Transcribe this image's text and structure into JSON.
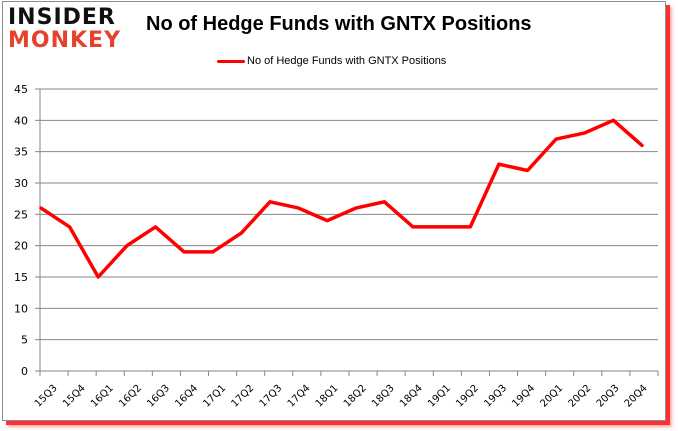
{
  "logo": {
    "line1": "INSIDER",
    "line2": "MONKEY"
  },
  "chart_data": {
    "type": "line",
    "title": "No of Hedge Funds with GNTX Positions",
    "xlabel": "",
    "ylabel": "",
    "categories": [
      "15Q3",
      "15Q4",
      "16Q1",
      "16Q2",
      "16Q3",
      "16Q4",
      "17Q1",
      "17Q2",
      "17Q3",
      "17Q4",
      "18Q1",
      "18Q2",
      "18Q3",
      "18Q4",
      "19Q1",
      "19Q2",
      "19Q3",
      "19Q4",
      "20Q1",
      "20Q2",
      "20Q3",
      "20Q4"
    ],
    "series": [
      {
        "name": "No of Hedge Funds with GNTX Positions",
        "color": "#ff0000",
        "values": [
          26,
          23,
          15,
          20,
          23,
          19,
          19,
          22,
          27,
          26,
          24,
          26,
          27,
          23,
          23,
          23,
          33,
          32,
          37,
          38,
          40,
          36
        ]
      }
    ],
    "ylim": [
      0,
      45
    ],
    "yticks": [
      0,
      5,
      10,
      15,
      20,
      25,
      30,
      35,
      40,
      45
    ],
    "grid": true,
    "legend_position": "top"
  },
  "colors": {
    "line": "#ff0000",
    "grid": "#868686",
    "logo_accent": "#e8412b",
    "frame_shadow": "#ff3030"
  }
}
